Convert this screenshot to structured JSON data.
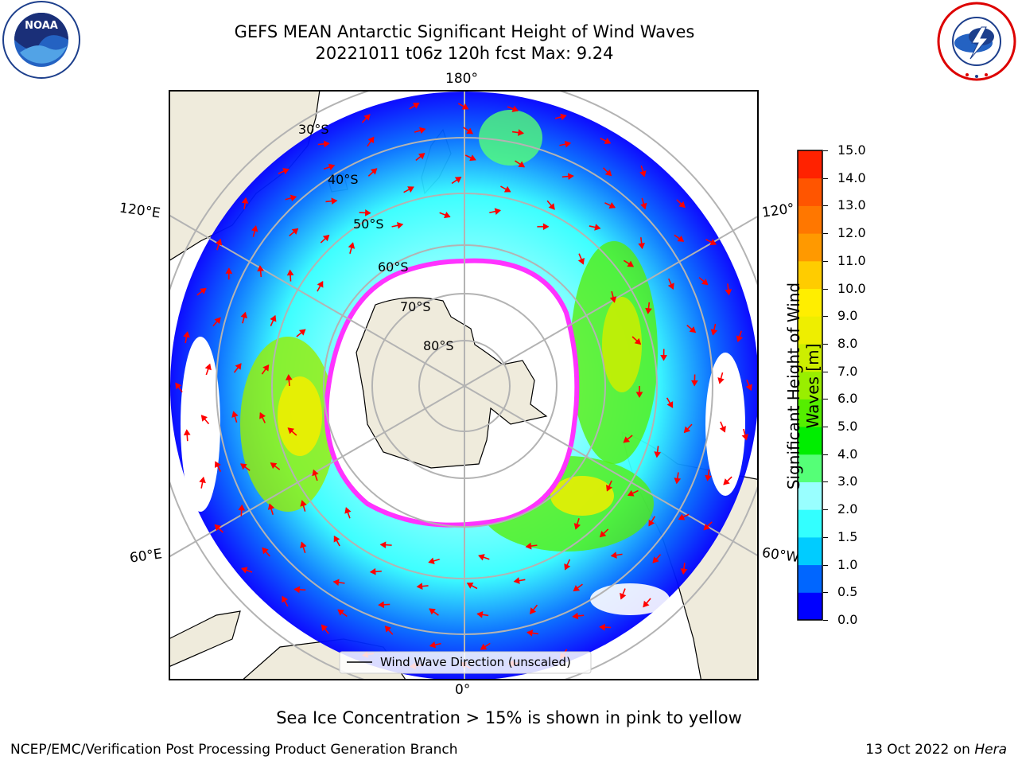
{
  "header": {
    "title_line1": "GEFS MEAN Antarctic Significant Height of Wind Waves",
    "title_line2": "20221011 t06z 120h fcst   Max: 9.24"
  },
  "logos": {
    "left": {
      "name": "noaa-logo",
      "text": "NOAA",
      "ring_text": "NATIONAL OCEANIC AND ATMOSPHERIC ADMINISTRATION · U.S. DEPARTMENT OF COMMERCE"
    },
    "right": {
      "name": "nws-logo",
      "ring_text": "NATIONAL WEATHER SERVICE"
    }
  },
  "map": {
    "projection": "south-polar-stereographic",
    "longitude_labels": {
      "top": "180°",
      "bottom": "0°",
      "left_upper": "120°E",
      "left_lower": "60°E",
      "right_upper": "120°",
      "right_lower": "60°W"
    },
    "latitude_labels": [
      "30°S",
      "40°S",
      "50°S",
      "60°S",
      "70°S",
      "80°S"
    ],
    "legend": "Wind Wave Direction (unscaled)",
    "colors": {
      "land": "#efebdc",
      "ice_edge": "#ff33ff",
      "arrows": "#ff0000",
      "grid": "#b3b3b3"
    }
  },
  "colorbar": {
    "label": "Significant Height of Wind Waves [m]",
    "ticks": [
      "15.0",
      "14.0",
      "13.0",
      "12.0",
      "11.0",
      "10.0",
      "9.0",
      "8.0",
      "7.0",
      "6.0",
      "5.0",
      "4.0",
      "3.0",
      "2.0",
      "1.5",
      "1.0",
      "0.5",
      "0.0"
    ],
    "levels": [
      0,
      0.5,
      1,
      1.5,
      2,
      3,
      4,
      5,
      6,
      7,
      8,
      9,
      10,
      11,
      12,
      13,
      14,
      15
    ],
    "colors": [
      "#0000ff",
      "#0066ff",
      "#00ccff",
      "#33ffff",
      "#99ffff",
      "#55ff77",
      "#00ee00",
      "#55ee00",
      "#99ee00",
      "#ccee00",
      "#eeee00",
      "#ffee00",
      "#ffcc00",
      "#ff9900",
      "#ff7700",
      "#ff5500",
      "#ff2200"
    ]
  },
  "caption": "Sea Ice Concentration > 15% is shown in pink to yellow",
  "footer": {
    "left": "NCEP/EMC/Verification Post Processing Product Generation Branch",
    "right_date": "13 Oct 2022 on ",
    "right_host": "Hera"
  }
}
